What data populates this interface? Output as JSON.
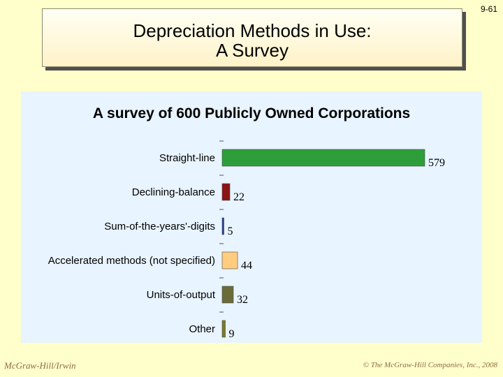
{
  "slide": {
    "number": "9-61",
    "title_line1": "Depreciation Methods in Use:",
    "title_line2": "A Survey"
  },
  "footer": {
    "publisher": "McGraw-Hill/Irwin",
    "copyright": "© The McGraw-Hill Companies, Inc., 2008"
  },
  "chart_data": {
    "type": "bar",
    "orientation": "horizontal",
    "title": "A survey of 600 Publicly Owned Corporations",
    "categories": [
      "Straight-line",
      "Declining-balance",
      "Sum-of-the-years'-digits",
      "Accelerated methods (not specified)",
      "Units-of-output",
      "Other"
    ],
    "values": [
      579,
      22,
      5,
      44,
      32,
      9
    ],
    "bar_colors": [
      "#2E9E3A",
      "#8B1414",
      "#1F3E96",
      "#FFCC80",
      "#6B6B3A",
      "#7A7A2A"
    ],
    "xlim": [
      0,
      600
    ],
    "grid": false,
    "legend": "none"
  }
}
